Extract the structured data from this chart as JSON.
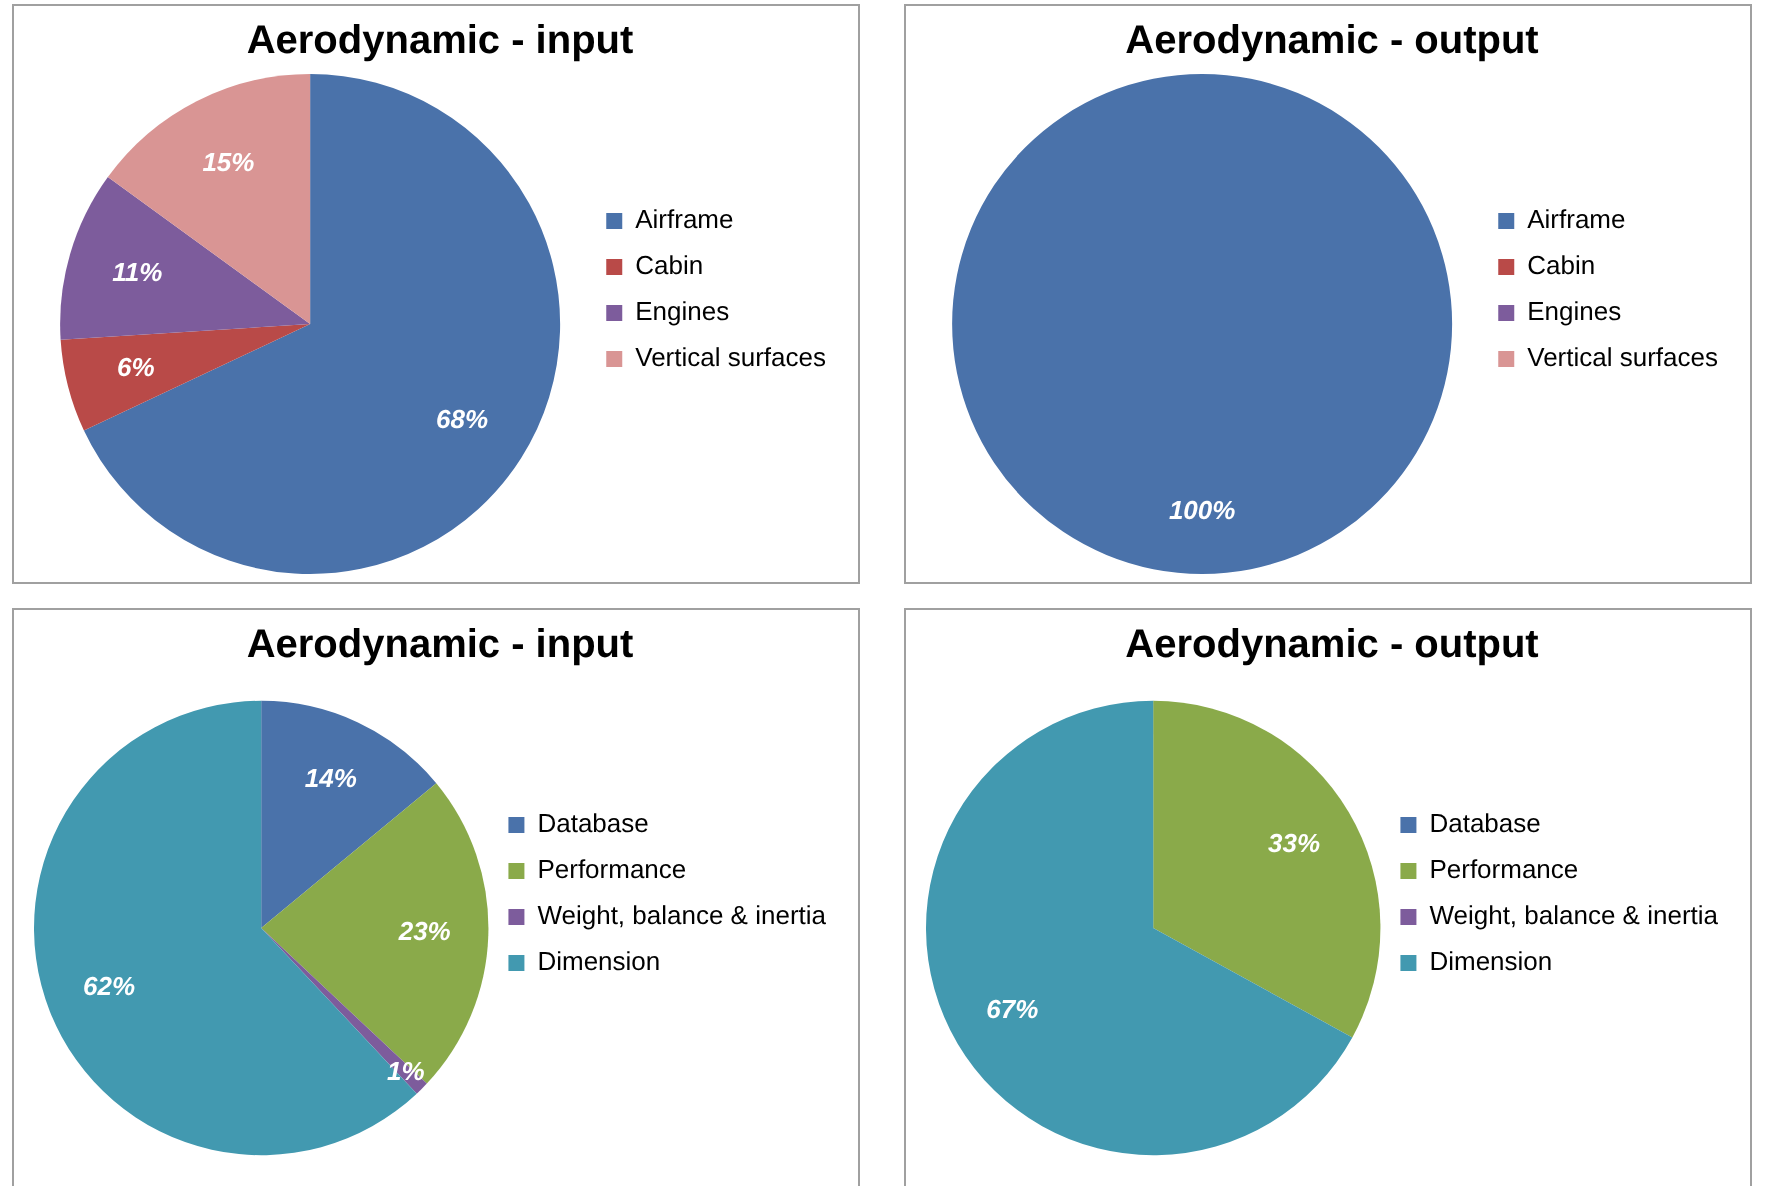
{
  "chart_data": [
    {
      "type": "pie",
      "title": "Aerodynamic - input",
      "categories": [
        "Airframe",
        "Cabin",
        "Engines",
        "Vertical surfaces"
      ],
      "values": [
        68,
        6,
        11,
        15
      ],
      "colors": [
        "#4a72aa",
        "#b94a48",
        "#7d5c9c",
        "#d99594"
      ],
      "value_labels": [
        "68%",
        "6%",
        "11%",
        "15%"
      ],
      "legend": "right"
    },
    {
      "type": "pie",
      "title": "Aerodynamic - output",
      "categories": [
        "Airframe",
        "Cabin",
        "Engines",
        "Vertical surfaces"
      ],
      "values": [
        100,
        0,
        0,
        0
      ],
      "colors": [
        "#4a72aa",
        "#b94a48",
        "#7d5c9c",
        "#d99594"
      ],
      "value_labels": [
        "100%",
        null,
        null,
        null
      ],
      "legend": "right"
    },
    {
      "type": "pie",
      "title": "Aerodynamic - input",
      "categories": [
        "Database",
        "Performance",
        "Weight, balance & inertia",
        "Dimension"
      ],
      "values": [
        14,
        23,
        1,
        62
      ],
      "colors": [
        "#4a72aa",
        "#8aaa4a",
        "#7d5c9c",
        "#4299b0"
      ],
      "value_labels": [
        "14%",
        "23%",
        "1%",
        "62%"
      ],
      "legend": "right"
    },
    {
      "type": "pie",
      "title": "Aerodynamic - output",
      "categories": [
        "Database",
        "Performance",
        "Weight, balance & inertia",
        "Dimension"
      ],
      "values": [
        0,
        33,
        0,
        67
      ],
      "colors": [
        "#4a72aa",
        "#8aaa4a",
        "#7d5c9c",
        "#4299b0"
      ],
      "value_labels": [
        null,
        "33%",
        null,
        "67%"
      ],
      "legend": "right"
    }
  ]
}
